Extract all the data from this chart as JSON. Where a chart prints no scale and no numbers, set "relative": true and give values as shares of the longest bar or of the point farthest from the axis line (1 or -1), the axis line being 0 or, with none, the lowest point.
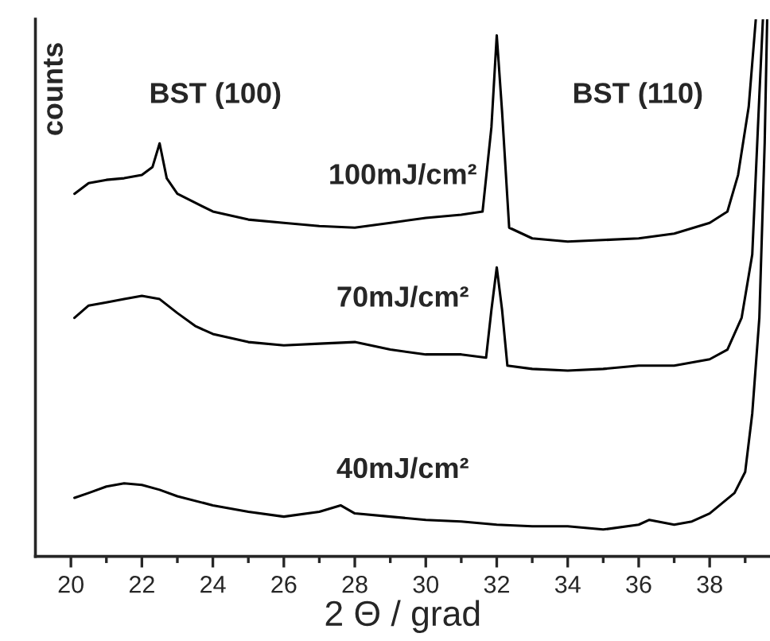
{
  "chart_data": {
    "type": "line",
    "relative": true,
    "xlabel": "2 Θ / grad",
    "ylabel": "counts",
    "xlim": [
      19,
      39.7
    ],
    "xticks": [
      20,
      {
        "value": 21,
        "label": null
      },
      22,
      {
        "value": 23,
        "label": null
      },
      24,
      {
        "value": 25,
        "label": null
      },
      26,
      {
        "value": 27,
        "label": null
      },
      28,
      {
        "value": 29,
        "label": null
      },
      30,
      {
        "value": 31,
        "label": null
      },
      32,
      {
        "value": 33,
        "label": null
      },
      34,
      {
        "value": 35,
        "label": null
      },
      36,
      {
        "value": 37,
        "label": null
      },
      38,
      {
        "value": 39,
        "label": null
      }
    ],
    "grid": false,
    "legend": false,
    "marker": "none",
    "line_style": "solid",
    "series": [
      {
        "name": "100mJ/cm²",
        "color": "#000000",
        "x": [
          20.1,
          20.5,
          21,
          21.5,
          22,
          22.3,
          22.5,
          22.7,
          23,
          24,
          25,
          26,
          27,
          28,
          29,
          30,
          31,
          31.6,
          31.85,
          32,
          32.15,
          32.35,
          33,
          34,
          35,
          36,
          37,
          38,
          38.5,
          38.8,
          39.1,
          39.3
        ],
        "values": [
          0.675,
          0.695,
          0.701,
          0.704,
          0.71,
          0.725,
          0.769,
          0.704,
          0.675,
          0.642,
          0.627,
          0.621,
          0.615,
          0.612,
          0.621,
          0.63,
          0.636,
          0.642,
          0.799,
          0.97,
          0.828,
          0.612,
          0.592,
          0.586,
          0.589,
          0.592,
          0.601,
          0.621,
          0.642,
          0.71,
          0.837,
          1.0
        ]
      },
      {
        "name": "70mJ/cm²",
        "color": "#000000",
        "x": [
          20.1,
          20.5,
          21,
          21.5,
          22,
          22.5,
          23,
          23.5,
          24,
          25,
          26,
          27,
          28,
          29,
          30,
          31,
          31.7,
          31.85,
          32,
          32.15,
          32.3,
          33,
          34,
          35,
          36,
          37,
          38,
          38.5,
          38.9,
          39.2,
          39.4,
          39.5
        ],
        "values": [
          0.444,
          0.467,
          0.473,
          0.479,
          0.485,
          0.479,
          0.453,
          0.429,
          0.414,
          0.399,
          0.393,
          0.396,
          0.399,
          0.385,
          0.376,
          0.376,
          0.37,
          0.459,
          0.538,
          0.459,
          0.355,
          0.349,
          0.346,
          0.349,
          0.355,
          0.355,
          0.367,
          0.385,
          0.444,
          0.562,
          0.858,
          1.0
        ]
      },
      {
        "name": "40mJ/cm²",
        "color": "#000000",
        "x": [
          20.1,
          20.5,
          21,
          21.5,
          22,
          22.5,
          23,
          24,
          25,
          26,
          27,
          27.6,
          28,
          29,
          30,
          31,
          32,
          33,
          34,
          35,
          36,
          36.3,
          37,
          37.5,
          38,
          38.7,
          39,
          39.2,
          39.4,
          39.55,
          39.62
        ],
        "values": [
          0.109,
          0.118,
          0.13,
          0.136,
          0.133,
          0.124,
          0.112,
          0.095,
          0.083,
          0.074,
          0.083,
          0.095,
          0.08,
          0.074,
          0.068,
          0.065,
          0.059,
          0.056,
          0.056,
          0.05,
          0.059,
          0.068,
          0.059,
          0.065,
          0.08,
          0.118,
          0.157,
          0.266,
          0.444,
          0.769,
          1.0
        ]
      }
    ],
    "annotations": [
      "BST (100)",
      "BST (110)"
    ]
  }
}
